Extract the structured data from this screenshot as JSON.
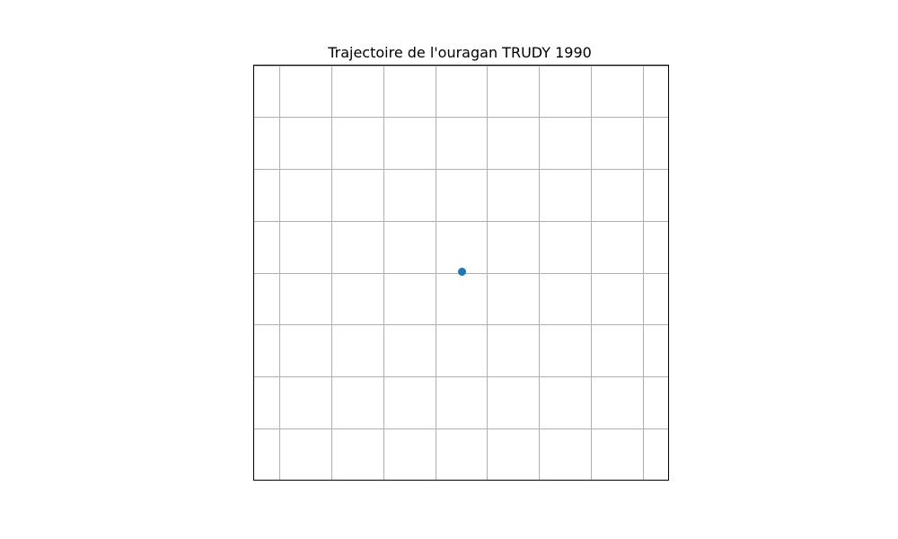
{
  "chart_data": {
    "type": "scatter",
    "title": "Trajectoire de l'ouragan TRUDY 1990",
    "xlabel": "",
    "ylabel": "",
    "xlim": [
      -0.4,
      0.4
    ],
    "ylim": [
      -0.4,
      0.4
    ],
    "x_gridlines": [
      -0.35,
      -0.25,
      -0.15,
      -0.05,
      0.05,
      0.15,
      0.25,
      0.35
    ],
    "y_gridlines": [
      -0.3,
      -0.2,
      -0.1,
      0.0,
      0.1,
      0.2,
      0.3,
      0.4
    ],
    "grid": true,
    "axes_tick_labels_visible": false,
    "series": [
      {
        "x": [
          0.0
        ],
        "y": [
          0.0
        ],
        "color": "#1f77b4",
        "marker": "circle"
      }
    ]
  }
}
